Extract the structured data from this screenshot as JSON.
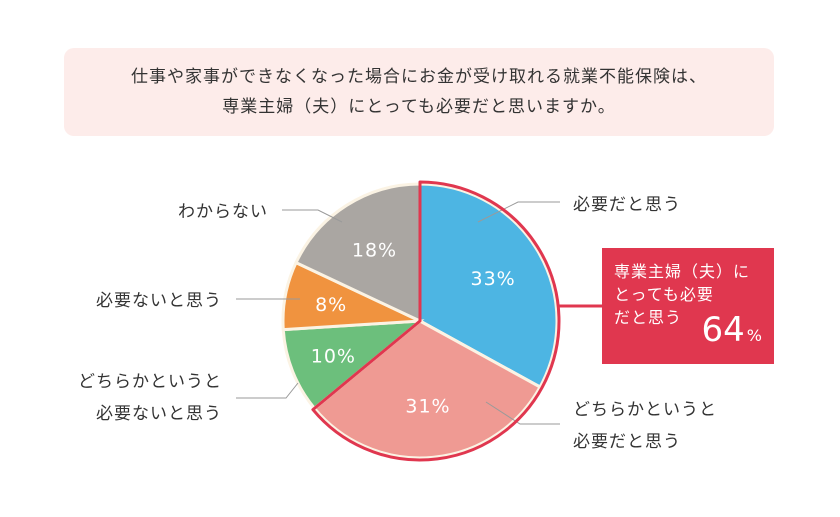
{
  "question": {
    "line1": "仕事や家事ができなくなった場合にお金が受け取れる就業不能保険は、",
    "line2": "専業主婦（夫）にとっても必要だと思いますか。"
  },
  "chart_data": {
    "type": "pie",
    "unit": "%",
    "slices": [
      {
        "key": "necessary",
        "label_lines": [
          "必要だと思う"
        ],
        "value": 33,
        "value_label": "33%",
        "color": "#4db5e3",
        "highlighted": true
      },
      {
        "key": "somewhat-necessary",
        "label_lines": [
          "どちらかというと",
          "必要だと思う"
        ],
        "value": 31,
        "value_label": "31%",
        "color": "#ef9a93",
        "highlighted": true
      },
      {
        "key": "somewhat-unnecessary",
        "label_lines": [
          "どちらかというと",
          "必要ないと思う"
        ],
        "value": 10,
        "value_label": "10%",
        "color": "#6cbf7c",
        "highlighted": false
      },
      {
        "key": "unnecessary",
        "label_lines": [
          "必要ないと思う"
        ],
        "value": 8,
        "value_label": "8%",
        "color": "#f0933f",
        "highlighted": false
      },
      {
        "key": "unknown",
        "label_lines": [
          "わからない"
        ],
        "value": 18,
        "value_label": "18%",
        "color": "#aaa6a2",
        "highlighted": false
      }
    ],
    "highlight_color": "#e0374f"
  },
  "callout": {
    "lines": [
      "専業主婦（夫）に",
      "とっても必要",
      "だと思う"
    ],
    "value": "64",
    "unit": "%"
  }
}
